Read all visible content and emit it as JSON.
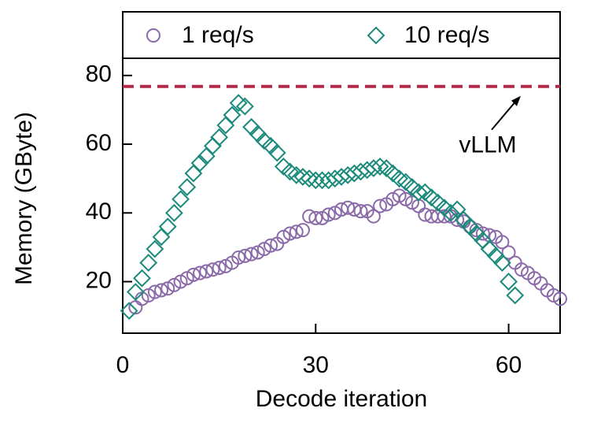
{
  "chart_data": {
    "type": "scatter",
    "xlabel": "Decode iteration",
    "ylabel": "Memory (GByte)",
    "xlim": [
      0,
      68
    ],
    "ylim": [
      5,
      85
    ],
    "xticks": [
      0,
      30,
      60
    ],
    "yticks": [
      20,
      40,
      60,
      80
    ],
    "legend": "top",
    "series": [
      {
        "name": "1 req/s",
        "color": "#8a6aa8",
        "marker": "circle",
        "x": [
          2,
          3,
          4,
          5,
          6,
          7,
          8,
          9,
          10,
          11,
          12,
          13,
          14,
          15,
          16,
          17,
          18,
          19,
          20,
          21,
          22,
          23,
          24,
          25,
          26,
          27,
          28,
          29,
          30,
          31,
          32,
          33,
          34,
          35,
          36,
          37,
          38,
          39,
          40,
          41,
          42,
          43,
          44,
          45,
          46,
          47,
          48,
          49,
          50,
          51,
          52,
          53,
          54,
          55,
          56,
          57,
          58,
          59,
          60,
          61,
          62,
          63,
          64,
          65,
          66,
          67,
          68
        ],
        "values": [
          12.5,
          15,
          16,
          17,
          17.5,
          18,
          19,
          20,
          21,
          22,
          22.5,
          23,
          23.5,
          24,
          24.5,
          25.5,
          27,
          27.5,
          28,
          28.5,
          29.5,
          30.5,
          31,
          33,
          34,
          34.5,
          35,
          39,
          38.5,
          38.5,
          39.5,
          40,
          41,
          41.5,
          41,
          40.5,
          40.5,
          39,
          42,
          42.5,
          44,
          45,
          44,
          43,
          42,
          39.5,
          39,
          39,
          39,
          39,
          38,
          37.5,
          36,
          35,
          34,
          33.5,
          33,
          31.5,
          28.5,
          25.5,
          23.5,
          22.5,
          21,
          19.5,
          17.5,
          16,
          15
        ]
      },
      {
        "name": "10 req/s",
        "color": "#1a8a7a",
        "marker": "diamond",
        "x": [
          1,
          2,
          3,
          4,
          5,
          6,
          7,
          8,
          9,
          10,
          11,
          12,
          13,
          14,
          15,
          16,
          17,
          18,
          19,
          20,
          21,
          22,
          23,
          24,
          25,
          26,
          27,
          28,
          29,
          30,
          31,
          32,
          33,
          34,
          35,
          36,
          37,
          38,
          39,
          40,
          41,
          42,
          43,
          44,
          45,
          46,
          47,
          48,
          49,
          50,
          51,
          52,
          53,
          54,
          55,
          56,
          57,
          58,
          59,
          60,
          61
        ],
        "values": [
          11.5,
          17,
          21,
          25.5,
          29.5,
          33,
          36,
          40,
          44,
          47.5,
          51.5,
          54.5,
          56.5,
          59.5,
          62,
          65.5,
          68.5,
          72,
          71,
          65,
          63,
          61,
          59.5,
          57.5,
          53.5,
          52,
          51,
          50.5,
          50,
          49.5,
          49.5,
          49.5,
          50,
          50.5,
          51,
          51.5,
          52,
          52.5,
          53,
          53.5,
          53,
          51.5,
          50,
          49,
          47.5,
          46,
          46,
          44.5,
          43,
          41.5,
          40,
          41,
          38,
          36,
          34,
          32,
          29.5,
          27.5,
          25.5,
          20,
          16
        ]
      }
    ],
    "reference_line": {
      "value": 76.8,
      "color": "#b22a4a",
      "label": "vLLM"
    }
  }
}
